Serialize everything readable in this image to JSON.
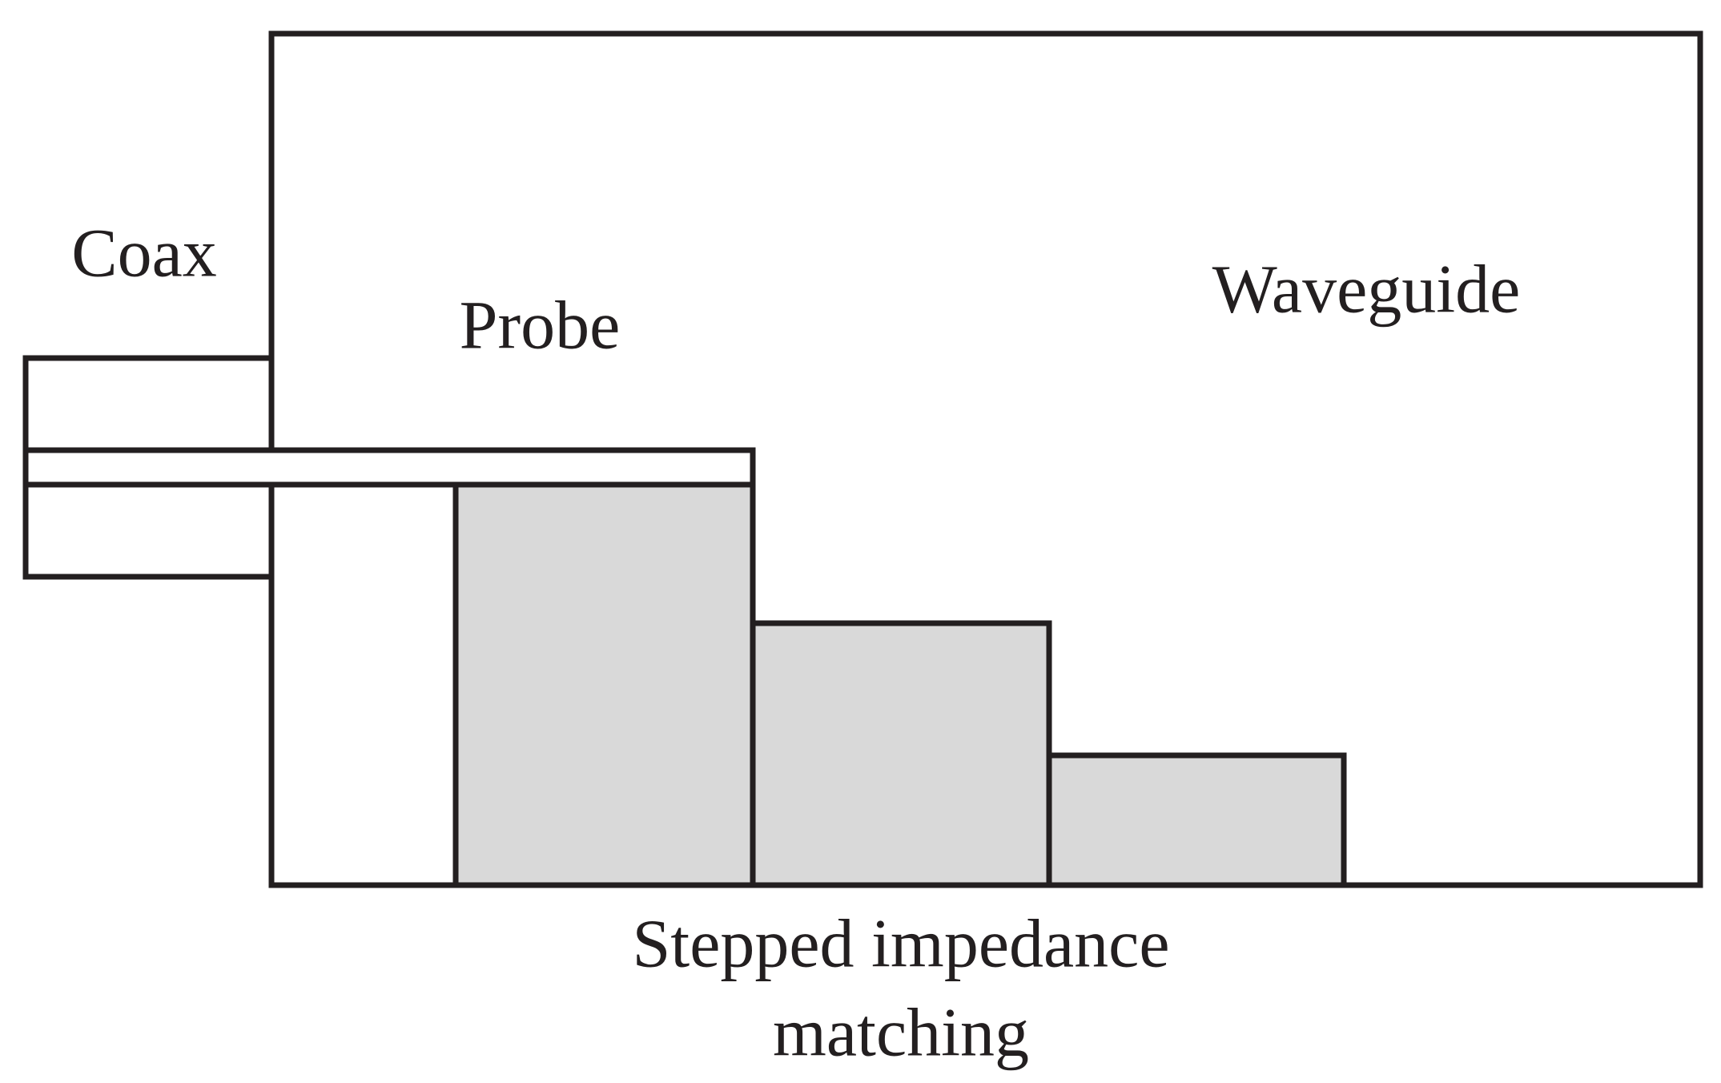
{
  "labels": {
    "coax": "Coax",
    "probe": "Probe",
    "waveguide": "Waveguide",
    "matching": [
      "Stepped impedance",
      "matching"
    ]
  }
}
